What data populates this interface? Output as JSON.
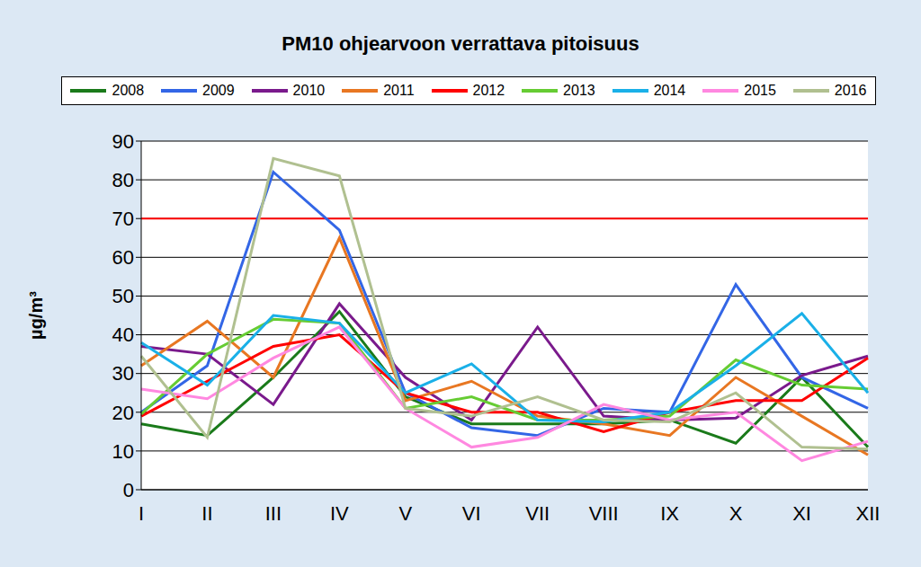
{
  "chart_data": {
    "type": "line",
    "title": "PM10 ohjearvoon verrattava pitoisuus",
    "y_label": "µg/m³",
    "categories": [
      "I",
      "II",
      "III",
      "IV",
      "V",
      "VI",
      "VII",
      "VIII",
      "IX",
      "X",
      "XI",
      "XII"
    ],
    "series": [
      {
        "name": "2008",
        "color": "#1a7a1a",
        "values": [
          17,
          14,
          29,
          46,
          24,
          17,
          17,
          17,
          18,
          12,
          29,
          11
        ]
      },
      {
        "name": "2009",
        "color": "#3366e6",
        "values": [
          20,
          32,
          82,
          67,
          25,
          16,
          14,
          21,
          20,
          53,
          29,
          21
        ]
      },
      {
        "name": "2010",
        "color": "#7a1a8c",
        "values": [
          37,
          35,
          22,
          48,
          29,
          18,
          42,
          19,
          18,
          18.5,
          29.5,
          34.5
        ]
      },
      {
        "name": "2011",
        "color": "#e87722",
        "values": [
          32,
          43.5,
          29,
          65,
          23,
          28,
          19,
          17,
          14,
          29,
          19,
          9
        ]
      },
      {
        "name": "2012",
        "color": "#ff0000",
        "values": [
          19,
          28,
          37,
          40,
          25,
          20,
          20,
          15,
          20,
          23,
          23,
          34
        ]
      },
      {
        "name": "2013",
        "color": "#66cc33",
        "values": [
          19.5,
          35,
          44,
          43,
          21,
          24,
          18,
          18,
          19,
          33.5,
          27,
          26
        ]
      },
      {
        "name": "2014",
        "color": "#1ab0e8",
        "values": [
          38,
          27,
          45,
          43,
          25,
          32.5,
          18,
          17.5,
          20,
          32,
          45.5,
          25
        ]
      },
      {
        "name": "2015",
        "color": "#ff88e0",
        "values": [
          26,
          23.5,
          34,
          42,
          21,
          11,
          13.5,
          22,
          18,
          20,
          7.5,
          12.5
        ]
      },
      {
        "name": "2016",
        "color": "#b0c090",
        "values": [
          34.5,
          13.5,
          85.5,
          81,
          21,
          19,
          24,
          18,
          17.5,
          25,
          11,
          10.5
        ]
      }
    ],
    "threshold": {
      "value": 70,
      "color": "#ff0000"
    },
    "ylim": [
      0,
      90
    ],
    "yticks": [
      0,
      10,
      20,
      30,
      40,
      50,
      60,
      70,
      80,
      90
    ],
    "grid": true
  }
}
